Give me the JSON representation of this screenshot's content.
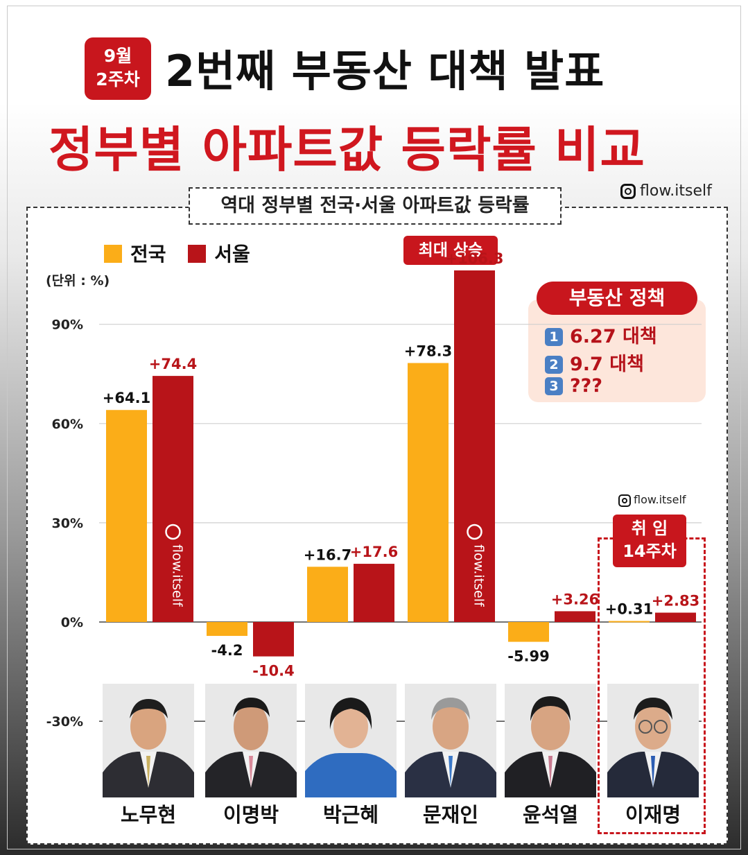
{
  "header": {
    "week_badge_line1": "9월",
    "week_badge_line2": "2주차",
    "title_line1": "2번째 부동산 대책 발표",
    "title_line2": "정부별 아파트값 등락률 비교"
  },
  "chart_box": {
    "subtitle": "역대 정부별 전국·서울 아파트값 등락률",
    "credit": "flow.itself",
    "unit": "(단위 : %)",
    "max_badge": "최대 상승",
    "highlight_badge_line1": "취  임",
    "highlight_badge_line2": "14주차"
  },
  "policy": {
    "title": "부동산 정책",
    "items": [
      {
        "num": "1",
        "text": "6.27 대책"
      },
      {
        "num": "2",
        "text": "9.7 대책"
      },
      {
        "num": "3",
        "text": "???"
      }
    ]
  },
  "colors": {
    "national": "#fbad18",
    "seoul": "#b81419",
    "accent": "#c8161d",
    "policy_bg": "#fde6db"
  },
  "chart_data": {
    "type": "bar",
    "title": "역대 정부별 전국·서울 아파트값 등락률",
    "categories": [
      "노무현",
      "이명박",
      "박근혜",
      "문재인",
      "윤석열",
      "이재명"
    ],
    "series": [
      {
        "name": "전국",
        "values": [
          64.1,
          -4.2,
          16.7,
          78.3,
          -5.99,
          0.31
        ],
        "labels": [
          "+64.1",
          "-4.2",
          "+16.7",
          "+78.3",
          "-5.99",
          "+0.31"
        ]
      },
      {
        "name": "서울",
        "values": [
          74.4,
          -10.4,
          17.6,
          106.3,
          3.26,
          2.83
        ],
        "labels": [
          "+74.4",
          "-10.4",
          "+17.6",
          "+106.3",
          "+3.26",
          "+2.83"
        ]
      }
    ],
    "ylabel": "(단위 : %)",
    "yticks": [
      90,
      60,
      30,
      0,
      -30
    ],
    "ytick_labels": [
      "90%",
      "60%",
      "30%",
      "0%",
      "-30%"
    ],
    "ylim": [
      -30,
      110
    ],
    "legend": "top-left",
    "grid": true
  }
}
